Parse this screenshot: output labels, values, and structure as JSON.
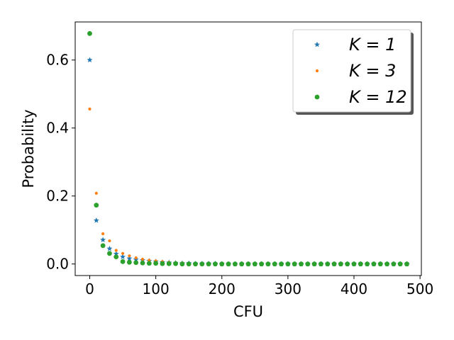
{
  "chart_data": {
    "type": "scatter",
    "title": "",
    "xlabel": "CFU",
    "ylabel": "Probability",
    "xlim": [
      -22,
      502
    ],
    "ylim": [
      -0.034,
      0.712
    ],
    "xticks": [
      0,
      100,
      200,
      300,
      400,
      500
    ],
    "xtick_labels": [
      "0",
      "100",
      "200",
      "300",
      "400",
      "500"
    ],
    "yticks": [
      0.0,
      0.2,
      0.4,
      0.6
    ],
    "ytick_labels": [
      "0.0",
      "0.2",
      "0.4",
      "0.6"
    ],
    "grid": false,
    "legend_position": "top-right",
    "x": [
      0,
      10,
      20,
      30,
      40,
      50,
      60,
      70,
      80,
      90,
      100,
      110,
      120,
      130,
      140,
      150,
      160,
      170,
      180,
      190,
      200,
      210,
      220,
      230,
      240,
      250,
      260,
      270,
      280,
      290,
      300,
      310,
      320,
      330,
      340,
      350,
      360,
      370,
      380,
      390,
      400,
      410,
      420,
      430,
      440,
      450,
      460,
      470,
      480
    ],
    "series": [
      {
        "name": "K = 1",
        "color": "#1f77b4",
        "marker": "star",
        "values": [
          0.6,
          0.128,
          0.071,
          0.045,
          0.03,
          0.021,
          0.016,
          0.013,
          0.011,
          0.009,
          0.007,
          0.005,
          0.004,
          0.003,
          0.002,
          0.002,
          0.001,
          0.001,
          0.001,
          0.001,
          0.0,
          0.0,
          0.0,
          0.0,
          0.0,
          0.0,
          0.0,
          0.0,
          0.0,
          0.0,
          0.0,
          0.0,
          0.0,
          0.0,
          0.0,
          0.0,
          0.0,
          0.0,
          0.0,
          0.0,
          0.0,
          0.0,
          0.0,
          0.0,
          0.0,
          0.0,
          0.0,
          0.0,
          0.0
        ]
      },
      {
        "name": "K = 3",
        "color": "#ff7f0e",
        "marker": "point",
        "values": [
          0.456,
          0.208,
          0.089,
          0.068,
          0.04,
          0.031,
          0.024,
          0.018,
          0.014,
          0.011,
          0.009,
          0.007,
          0.005,
          0.004,
          0.003,
          0.002,
          0.002,
          0.001,
          0.001,
          0.001,
          0.001,
          0.0,
          0.0,
          0.0,
          0.0,
          0.0,
          0.0,
          0.0,
          0.0,
          0.0,
          0.0,
          0.0,
          0.0,
          0.0,
          0.0,
          0.0,
          0.0,
          0.0,
          0.0,
          0.0,
          0.0,
          0.0,
          0.0,
          0.0,
          0.0,
          0.0,
          0.0,
          0.0,
          0.0
        ]
      },
      {
        "name": "K = 12",
        "color": "#2ca02c",
        "marker": "circle",
        "values": [
          0.678,
          0.173,
          0.054,
          0.031,
          0.021,
          0.007,
          0.005,
          0.004,
          0.003,
          0.002,
          0.002,
          0.001,
          0.001,
          0.001,
          0.0,
          0.0,
          0.0,
          0.0,
          0.0,
          0.0,
          0.0,
          0.0,
          0.0,
          0.0,
          0.0,
          0.0,
          0.0,
          0.0,
          0.0,
          0.0,
          0.0,
          0.0,
          0.0,
          0.0,
          0.0,
          0.0,
          0.0,
          0.0,
          0.0,
          0.0,
          0.0,
          0.0,
          0.0,
          0.0,
          0.0,
          0.0,
          0.0,
          0.0,
          0.0
        ]
      }
    ]
  }
}
